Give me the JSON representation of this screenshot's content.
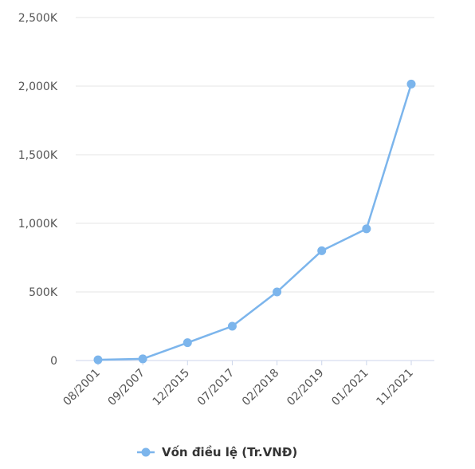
{
  "chart_data": {
    "type": "line",
    "categories": [
      "08/2001",
      "09/2007",
      "12/2015",
      "07/2017",
      "02/2018",
      "02/2019",
      "01/2021",
      "11/2021"
    ],
    "series": [
      {
        "name": "Vốn điều lệ (Tr.VNĐ)",
        "values": [
          5,
          12,
          130,
          250,
          500,
          800,
          960,
          2015
        ],
        "color": "#7cb5ec"
      }
    ],
    "ylim": [
      0,
      2500
    ],
    "yticks": [
      {
        "value": 0,
        "label": "0"
      },
      {
        "value": 500,
        "label": "500K"
      },
      {
        "value": 1000,
        "label": "1,000K"
      },
      {
        "value": 1500,
        "label": "1,500K"
      },
      {
        "value": 2000,
        "label": "2,000K"
      },
      {
        "value": 2500,
        "label": "2,500K"
      }
    ],
    "grid": true,
    "legend_position": "bottom-center",
    "title": "",
    "xlabel": "",
    "ylabel": ""
  }
}
